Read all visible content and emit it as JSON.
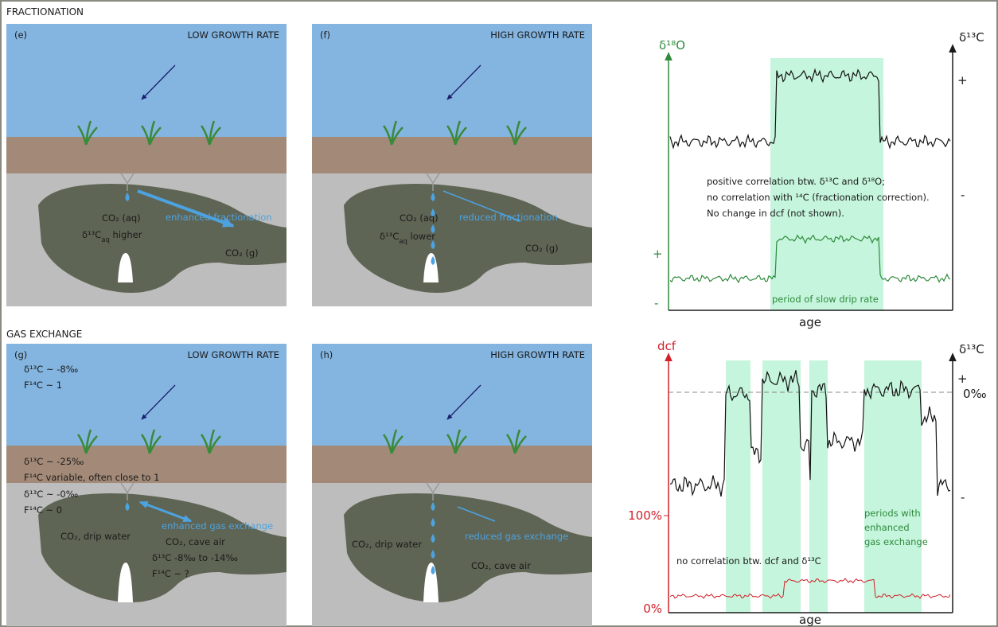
{
  "sections": [
    {
      "title": "FRACTIONATION"
    },
    {
      "title": "GAS EXCHANGE"
    }
  ],
  "panels": [
    {
      "label": "(e)",
      "growth": "LOW GROWTH RATE",
      "texts": [
        {
          "text": "CO₂ (aq)"
        },
        {
          "text": "δ¹³C",
          "sub": "aq",
          "tail": " higher"
        },
        {
          "text": "enhanced fractionation"
        },
        {
          "text": "CO₂ (g)"
        }
      ]
    },
    {
      "label": "(f)",
      "growth": "HIGH GROWTH RATE",
      "texts": [
        {
          "text": "CO₂ (aq)"
        },
        {
          "text": "δ¹³C",
          "sub": "aq",
          "tail": " lower"
        },
        {
          "text": "reduced fractionation"
        },
        {
          "text": "CO₂ (g)"
        }
      ]
    },
    {
      "label": "(g)",
      "growth": "LOW GROWTH RATE",
      "texts": [
        {
          "text": "δ¹³C ~ -8‰"
        },
        {
          "text": "F¹⁴C ~ 1"
        },
        {
          "text": "δ¹³C ~ -25‰"
        },
        {
          "text": "F¹⁴C variable, often close to 1"
        },
        {
          "text": "δ¹³C ~ -0‰"
        },
        {
          "text": "F¹⁴C ~ 0"
        },
        {
          "text": "CO₂, drip water"
        },
        {
          "text": "enhanced gas exchange"
        },
        {
          "text": "CO₂, cave air"
        },
        {
          "text": "δ¹³C  -8‰  to -14‰"
        },
        {
          "text": "F¹⁴C ~ ?"
        }
      ]
    },
    {
      "label": "(h)",
      "growth": "HIGH GROWTH RATE",
      "texts": [
        {
          "text": "CO₂, drip water"
        },
        {
          "text": "reduced gas exchange"
        },
        {
          "text": "CO₂, cave air"
        }
      ]
    }
  ],
  "charts": [
    {
      "left_label": "δ¹⁸O",
      "right_label": "δ¹³C",
      "right_plus": "+",
      "right_minus": "-",
      "left_plus": "+",
      "left_minus": "-",
      "annotation": [
        "positive correlation btw. δ¹³C  and δ¹⁸O;",
        "no correlation with ¹⁴C (fractionation correction).",
        "No change in dcf (not shown)."
      ],
      "shade_label": "period of slow drip rate",
      "x_label": "age"
    },
    {
      "left_label": "dcf",
      "right_label": "δ¹³C",
      "right_plus": "+",
      "right_zero": "0‰",
      "right_minus": "-",
      "left_ticks": [
        "100%",
        "0%"
      ],
      "annotation": "no correlation btw. dcf and δ¹³C",
      "shade_label": [
        "periods with",
        "enhanced",
        "gas exchange"
      ],
      "x_label": "age"
    }
  ]
}
